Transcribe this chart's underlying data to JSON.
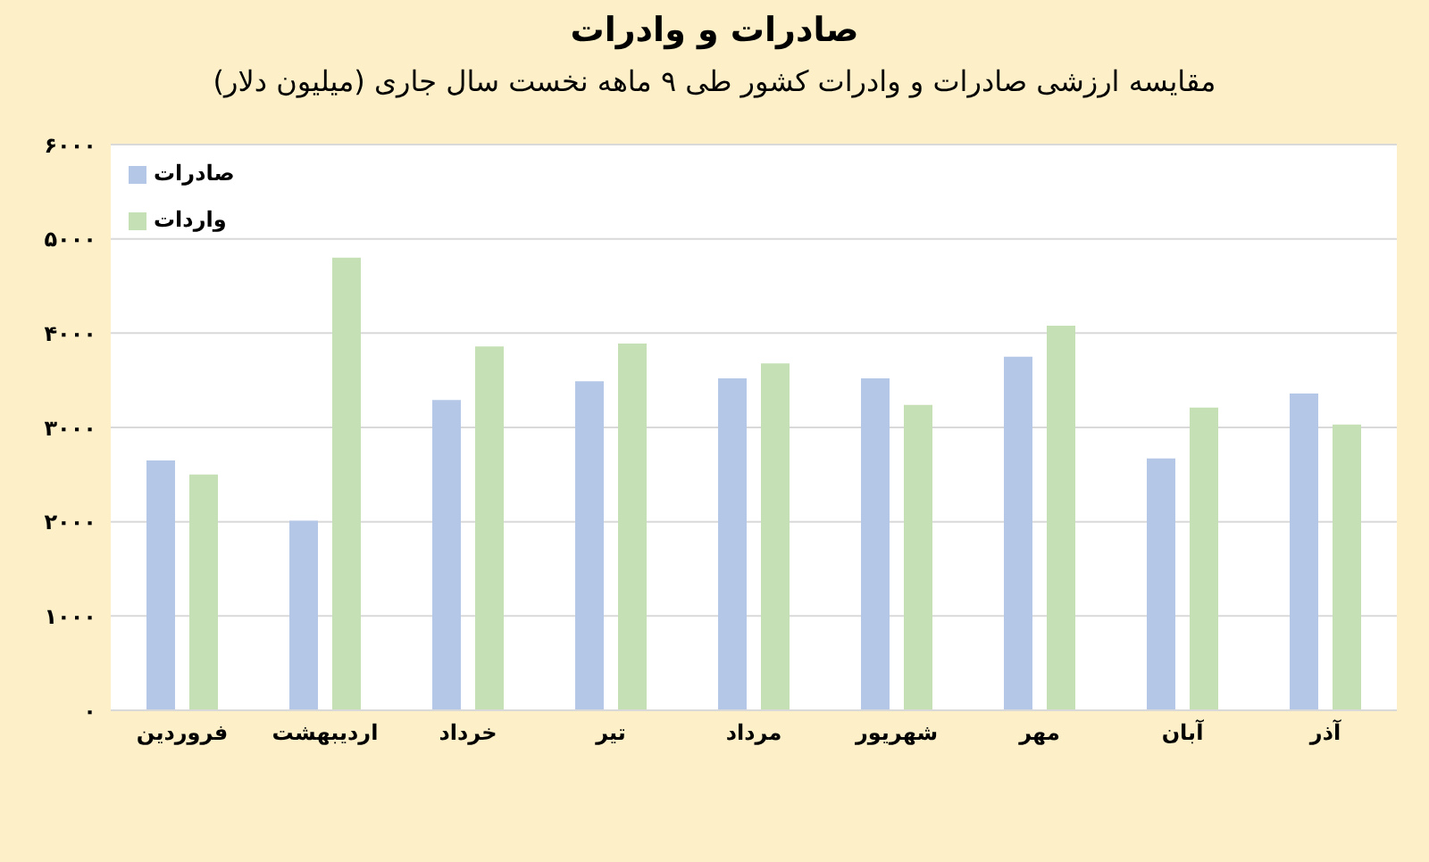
{
  "chart_data": {
    "type": "bar",
    "title": "صادرات و وادرات",
    "subtitle": "مقایسه ارزشی صادرات و وادرات کشور طی  ۹ ماهه نخست سال جاری (میلیون دلار)",
    "categories": [
      "فروردین",
      "اردیبهشت",
      "خرداد",
      "تیر",
      "مرداد",
      "شهریور",
      "مهر",
      "آبان",
      "آذر"
    ],
    "series": [
      {
        "name": "صادرات",
        "color": "#b4c7e7",
        "values": [
          2650,
          2010,
          3290,
          3490,
          3520,
          3520,
          3750,
          2670,
          3360
        ]
      },
      {
        "name": "واردات",
        "color": "#c5e0b4",
        "values": [
          2500,
          4800,
          3860,
          3890,
          3680,
          3240,
          4080,
          3210,
          3030
        ]
      }
    ],
    "ylim": [
      0,
      6000
    ],
    "yticks": [
      {
        "value": 0,
        "label": "۰"
      },
      {
        "value": 1000,
        "label": "۱۰۰۰"
      },
      {
        "value": 2000,
        "label": "۲۰۰۰"
      },
      {
        "value": 3000,
        "label": "۳۰۰۰"
      },
      {
        "value": 4000,
        "label": "۴۰۰۰"
      },
      {
        "value": 5000,
        "label": "۵۰۰۰"
      },
      {
        "value": 6000,
        "label": "۶۰۰۰"
      }
    ],
    "grid": "y",
    "legend": "top left"
  }
}
